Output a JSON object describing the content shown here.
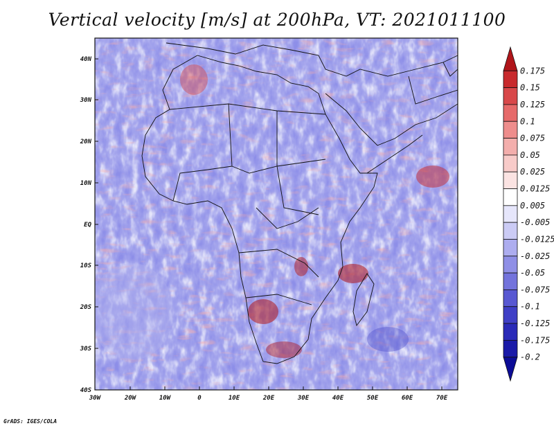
{
  "title": "Vertical velocity [m/s] at 200hPa, VT: 2021011100",
  "credit": "GrADS: IGES/COLA",
  "map": {
    "lat_labels": [
      "40N",
      "30N",
      "20N",
      "10N",
      "EQ",
      "10S",
      "20S",
      "30S",
      "40S"
    ],
    "lon_labels": [
      "30W",
      "20W",
      "10W",
      "0",
      "10E",
      "20E",
      "30E",
      "40E",
      "50E",
      "60E",
      "70E"
    ]
  },
  "colorbar": {
    "levels": [
      "0.175",
      "0.15",
      "0.125",
      "0.1",
      "0.075",
      "0.05",
      "0.025",
      "0.0125",
      "0.005",
      "-0.005",
      "-0.0125",
      "-0.025",
      "-0.05",
      "-0.075",
      "-0.1",
      "-0.125",
      "-0.175",
      "-0.2"
    ],
    "colors": [
      "#b0151a",
      "#c82a2d",
      "#d8484a",
      "#e66a6a",
      "#ee8d8c",
      "#f3aeac",
      "#f8cbc9",
      "#fbe3e2",
      "#ffffff",
      "#e6e6fb",
      "#cbcbf5",
      "#adadef",
      "#8f8fe6",
      "#7373dc",
      "#5858d2",
      "#3f3fc6",
      "#2a2ab8",
      "#1a1aa8",
      "#0c0c96"
    ]
  }
}
